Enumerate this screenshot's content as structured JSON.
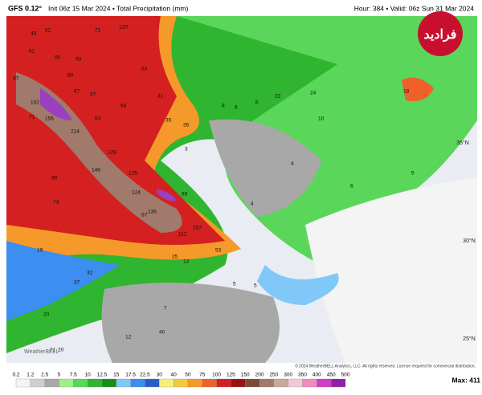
{
  "header": {
    "model": "GFS 0.12°",
    "init": "Init 06z 15 Mar 2024 • Total Precipitation (mm)",
    "valid": "Hour: 384 • Valid: 06z Sun 31 Mar 2024"
  },
  "logo": "فرادید",
  "map": {
    "latitudes": [
      "35°N",
      "30°N",
      "25°N"
    ],
    "values": [
      "49",
      "52",
      "72",
      "120",
      "62",
      "95",
      "93",
      "63",
      "80",
      "97",
      "47",
      "102",
      "156",
      "67",
      "68",
      "71",
      "214",
      "63",
      "129",
      "31",
      "146",
      "125",
      "99",
      "124",
      "69",
      "136",
      "57",
      "73",
      "157",
      "112",
      "53",
      "35",
      "35",
      "25",
      "13",
      "19",
      "37",
      "32",
      "20",
      "21",
      "20",
      "12",
      "40",
      "7",
      "8",
      "6",
      "6",
      "22",
      "24",
      "10",
      "18",
      "5",
      "4",
      "4",
      "6",
      "5",
      "5",
      "3"
    ]
  },
  "copyright": "© 2024 WeatherBELL Analytics, LLC. All rights reserved. License required for commercial distribution.",
  "watermark": "WeatherBELL",
  "legend": {
    "labels": [
      "0.2",
      "1.2",
      "2.5",
      "5",
      "7.5",
      "10",
      "12.5",
      "15",
      "17.5",
      "22.5",
      "30",
      "40",
      "50",
      "75",
      "100",
      "125",
      "150",
      "200",
      "250",
      "300",
      "350",
      "400",
      "450",
      "500"
    ],
    "colors": [
      "#f4f4f4",
      "#cfcfcf",
      "#a8a8a8",
      "#9ef08a",
      "#5ad65a",
      "#2fb52f",
      "#1a8c1a",
      "#7fc8f8",
      "#3c8ef0",
      "#2a5cc8",
      "#f5f07a",
      "#f5c842",
      "#f59a2a",
      "#f0602a",
      "#d42020",
      "#9a1010",
      "#7a4a3a",
      "#a07a6a",
      "#c8aa9a",
      "#f0c8d8",
      "#f08cc0",
      "#d040c0",
      "#9020a8"
    ],
    "max": "Max: 411"
  }
}
